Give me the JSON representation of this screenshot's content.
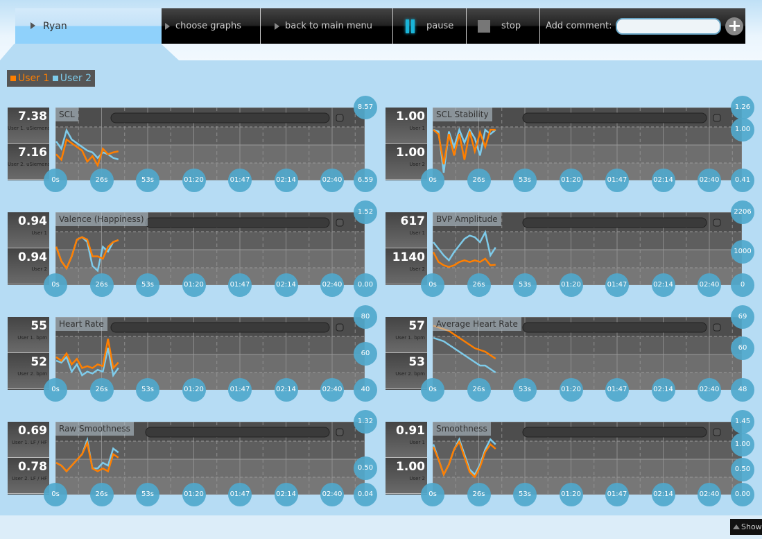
{
  "header": {
    "user": "Ryan",
    "choose_graphs": "choose graphs",
    "back": "back to main menu",
    "pause": "pause",
    "stop": "stop",
    "comment_label": "Add comment:",
    "comment_value": ""
  },
  "legend": {
    "user1": "User 1",
    "user2": "User 2",
    "user1_color": "#ff7f00",
    "user2_color": "#7ecbea"
  },
  "footer": {
    "show": "Show"
  },
  "time_ticks": [
    "0s",
    "26s",
    "53s",
    "01:20",
    "01:47",
    "02:14",
    "02:40"
  ],
  "charts": [
    {
      "title": "SCL",
      "u1_value": "7.38",
      "u1_label": "User 1. uSiemens",
      "u2_value": "7.16",
      "u2_label": "User 2. uSiemens",
      "yticks": [
        "8.57",
        "6.59"
      ],
      "ylim": [
        6.59,
        8.57
      ],
      "u1": [
        7.3,
        7.15,
        7.7,
        7.6,
        7.5,
        7.4,
        7.1,
        7.25,
        7.0,
        7.45,
        7.3,
        7.35,
        7.38
      ],
      "u2": [
        7.65,
        7.45,
        7.95,
        7.7,
        7.6,
        7.5,
        7.4,
        7.35,
        7.2,
        7.35,
        7.3,
        7.2,
        7.16
      ]
    },
    {
      "title": "SCL Stability",
      "u1_value": "1.00",
      "u1_label": "User 1",
      "u2_value": "1.00",
      "u2_label": "User 2",
      "yticks": [
        "1.26",
        "1.00",
        "0.41"
      ],
      "ylim": [
        0.41,
        1.26
      ],
      "u1": [
        1.0,
        0.95,
        0.6,
        0.95,
        0.7,
        0.95,
        0.65,
        0.98,
        0.75,
        0.97,
        0.8,
        1.0,
        1.0
      ],
      "u2": [
        1.0,
        0.98,
        0.5,
        0.98,
        0.8,
        1.0,
        0.85,
        1.0,
        0.9,
        0.7,
        1.0,
        0.95,
        1.0
      ]
    },
    {
      "title": "Valence (Happiness)",
      "u1_value": "0.94",
      "u1_label": "User 1",
      "u2_value": "0.94",
      "u2_label": "User 2",
      "yticks": [
        "1.52",
        "0.00"
      ],
      "ylim": [
        0,
        1.52
      ],
      "u1": [
        0.8,
        0.5,
        0.35,
        0.6,
        0.95,
        1.0,
        0.95,
        0.6,
        0.6,
        0.55,
        0.8,
        0.9,
        0.94
      ],
      "u2": [
        0.8,
        0.5,
        0.35,
        0.6,
        0.95,
        1.0,
        0.9,
        0.4,
        0.3,
        0.8,
        0.7,
        0.9,
        0.94
      ]
    },
    {
      "title": "BVP Amplitude",
      "u1_value": "617",
      "u1_label": "User 1",
      "u2_value": "1140",
      "u2_label": "User 2",
      "yticks": [
        "2206",
        "1000",
        "0"
      ],
      "ylim": [
        0,
        2206
      ],
      "u1": [
        1000,
        700,
        600,
        550,
        600,
        700,
        750,
        700,
        750,
        700,
        800,
        600,
        617
      ],
      "u2": [
        1300,
        1100,
        900,
        750,
        1000,
        1200,
        1400,
        1500,
        1450,
        1300,
        1600,
        900,
        1140
      ]
    },
    {
      "title": "Heart Rate",
      "u1_value": "55",
      "u1_label": "User 1. bpm",
      "u2_value": "52",
      "u2_label": "User 2. bpm",
      "yticks": [
        "80",
        "60",
        "40"
      ],
      "ylim": [
        40,
        80
      ],
      "u1": [
        58,
        56,
        60,
        54,
        57,
        52,
        53,
        52,
        54,
        53,
        68,
        52,
        55
      ],
      "u2": [
        56,
        55,
        58,
        50,
        54,
        48,
        50,
        49,
        51,
        50,
        63,
        48,
        52
      ]
    },
    {
      "title": "Average Heart Rate",
      "u1_value": "57",
      "u1_label": "User 1. bpm",
      "u2_value": "53",
      "u2_label": "User 2. bpm",
      "yticks": [
        "69",
        "60",
        "48"
      ],
      "ylim": [
        48,
        69
      ],
      "u1": [
        66.5,
        66,
        65.5,
        65,
        64,
        63,
        62,
        61,
        60,
        59.5,
        59,
        58,
        57
      ],
      "u2": [
        63,
        62.5,
        62,
        61,
        60,
        59,
        58,
        57,
        56,
        55,
        55,
        54,
        53
      ]
    },
    {
      "title": "Raw Smoothness",
      "u1_value": "0.69",
      "u1_label": "User 1. LF / HF",
      "u2_value": "0.78",
      "u2_label": "User 2. LF / HF",
      "yticks": [
        "1.32",
        "0.50",
        "0.04"
      ],
      "ylim": [
        0.04,
        1.32
      ],
      "u1": [
        0.6,
        0.55,
        0.45,
        0.55,
        0.65,
        0.75,
        0.95,
        0.5,
        0.45,
        0.5,
        0.45,
        0.75,
        0.69
      ],
      "u2": [
        0.6,
        0.55,
        0.45,
        0.55,
        0.65,
        0.75,
        1.0,
        0.5,
        0.5,
        0.6,
        0.55,
        0.85,
        0.78
      ]
    },
    {
      "title": "Smoothness",
      "u1_value": "0.91",
      "u1_label": "User 1",
      "u2_value": "1.00",
      "u2_label": "User 2",
      "yticks": [
        "1.45",
        "1.00",
        "0.50",
        "0.00"
      ],
      "ylim": [
        0,
        1.45
      ],
      "u1": [
        0.95,
        0.7,
        0.4,
        0.6,
        0.9,
        1.05,
        0.75,
        0.45,
        0.35,
        0.55,
        0.85,
        1.0,
        0.91
      ],
      "u2": [
        1.0,
        0.7,
        0.4,
        0.6,
        0.9,
        1.1,
        0.8,
        0.5,
        0.4,
        0.6,
        0.9,
        1.1,
        1.0
      ]
    }
  ]
}
